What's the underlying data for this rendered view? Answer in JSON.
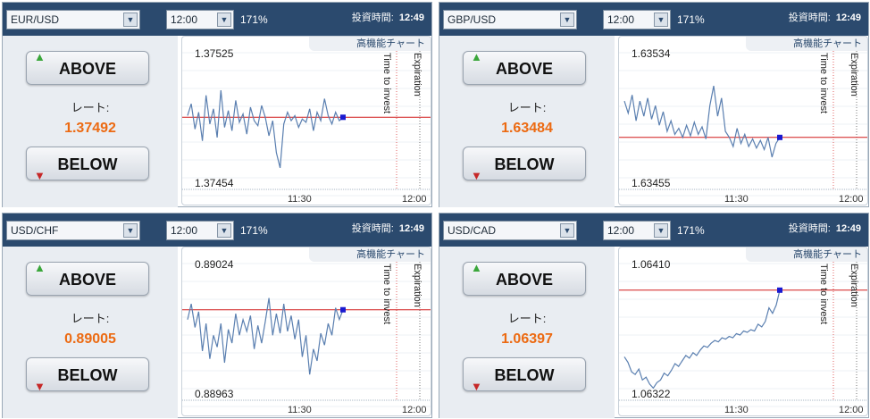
{
  "common": {
    "time_option": "12:00",
    "payout": "171%",
    "invest_time_label": "投資時間:",
    "invest_time_value": "12:49",
    "advanced_chart": "高機能チャート",
    "above_label": "ABOVE",
    "below_label": "BELOW",
    "rate_label": "レート:",
    "time_to_invest": "Time to invest",
    "expiration": "Expiration",
    "x_tick_1": "11:30",
    "x_tick_2": "12:00"
  },
  "colors": {
    "header_bg": "#2b4a6e",
    "rate_orange": "#ec6a12",
    "price_line": "#5a7fb0",
    "current_rate_line": "#d11a1a",
    "marker": "#1a1ad0"
  },
  "panels": [
    {
      "pair": "EUR/USD",
      "rate": "1.37492",
      "chart_data": {
        "type": "line",
        "y_top_label": "1.37525",
        "y_bottom_label": "1.37454",
        "ylim": [
          1.37454,
          1.37525
        ],
        "current_rate": 1.37492,
        "values": [
          1.37493,
          1.375,
          1.37485,
          1.37495,
          1.37478,
          1.37505,
          1.37488,
          1.37497,
          1.3748,
          1.37508,
          1.37486,
          1.37496,
          1.37484,
          1.37502,
          1.37489,
          1.37494,
          1.37482,
          1.37498,
          1.3749,
          1.37487,
          1.37499,
          1.37492,
          1.37481,
          1.3749,
          1.37471,
          1.37462,
          1.37488,
          1.37495,
          1.3749,
          1.37493,
          1.37486,
          1.37491,
          1.37489,
          1.37497,
          1.37484,
          1.37495,
          1.3749,
          1.37503,
          1.37493,
          1.37488,
          1.37495,
          1.3749,
          1.37492
        ]
      }
    },
    {
      "pair": "GBP/USD",
      "rate": "1.63484",
      "chart_data": {
        "type": "line",
        "y_top_label": "1.63534",
        "y_bottom_label": "1.63455",
        "ylim": [
          1.63455,
          1.63534
        ],
        "current_rate": 1.63484,
        "values": [
          1.63508,
          1.635,
          1.63512,
          1.63495,
          1.63508,
          1.63498,
          1.6351,
          1.63496,
          1.63505,
          1.63492,
          1.63501,
          1.63488,
          1.63495,
          1.63486,
          1.6349,
          1.63484,
          1.63492,
          1.63485,
          1.63494,
          1.63486,
          1.63491,
          1.63483,
          1.63505,
          1.63518,
          1.63498,
          1.6351,
          1.63488,
          1.63484,
          1.63478,
          1.6349,
          1.6348,
          1.63486,
          1.63478,
          1.63483,
          1.63477,
          1.63482,
          1.63476,
          1.63484,
          1.63471,
          1.6348,
          1.63484
        ]
      }
    },
    {
      "pair": "USD/CHF",
      "rate": "0.89005",
      "chart_data": {
        "type": "line",
        "y_top_label": "0.89024",
        "y_bottom_label": "0.88963",
        "ylim": [
          0.88963,
          0.89024
        ],
        "current_rate": 0.89005,
        "values": [
          0.89,
          0.89008,
          0.88996,
          0.89004,
          0.88984,
          0.88998,
          0.8898,
          0.88992,
          0.88986,
          0.88998,
          0.88978,
          0.88995,
          0.88988,
          0.89003,
          0.88992,
          0.89,
          0.88994,
          0.89002,
          0.88985,
          0.88997,
          0.88988,
          0.88999,
          0.89011,
          0.88992,
          0.89003,
          0.88993,
          0.89008,
          0.88994,
          0.89002,
          0.8899,
          0.89,
          0.88981,
          0.88992,
          0.88972,
          0.88985,
          0.88979,
          0.88993,
          0.88987,
          0.88998,
          0.88992,
          0.89006,
          0.89,
          0.89005
        ]
      }
    },
    {
      "pair": "USD/CAD",
      "rate": "1.06397",
      "chart_data": {
        "type": "line",
        "y_top_label": "1.06410",
        "y_bottom_label": "1.06322",
        "ylim": [
          1.06322,
          1.0641
        ],
        "current_rate": 1.06397,
        "values": [
          1.06348,
          1.06344,
          1.06337,
          1.06335,
          1.06339,
          1.06331,
          1.06333,
          1.06328,
          1.06325,
          1.06329,
          1.06331,
          1.06336,
          1.06334,
          1.06338,
          1.06343,
          1.06341,
          1.06345,
          1.06349,
          1.06347,
          1.06351,
          1.06349,
          1.06353,
          1.06356,
          1.06355,
          1.06358,
          1.0636,
          1.06359,
          1.06362,
          1.06361,
          1.06363,
          1.06362,
          1.06365,
          1.06364,
          1.06367,
          1.06366,
          1.06368,
          1.06367,
          1.06372,
          1.0637,
          1.06374,
          1.06384,
          1.0638,
          1.06386,
          1.06397
        ]
      }
    }
  ]
}
